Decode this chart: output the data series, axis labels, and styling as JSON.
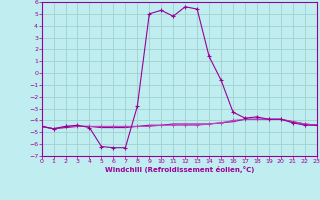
{
  "xlabel": "Windchill (Refroidissement éolien,°C)",
  "xlim": [
    0,
    23
  ],
  "ylim": [
    -7,
    6
  ],
  "xticks": [
    0,
    1,
    2,
    3,
    4,
    5,
    6,
    7,
    8,
    9,
    10,
    11,
    12,
    13,
    14,
    15,
    16,
    17,
    18,
    19,
    20,
    21,
    22,
    23
  ],
  "yticks": [
    -7,
    -6,
    -5,
    -4,
    -3,
    -2,
    -1,
    0,
    1,
    2,
    3,
    4,
    5,
    6
  ],
  "bg_color": "#c0eef0",
  "grid_color": "#a0d0d0",
  "line_color1": "#990099",
  "line_color2": "#bb44bb",
  "line_color3": "#cc55cc",
  "series1_x": [
    0,
    1,
    2,
    3,
    4,
    5,
    6,
    7,
    8,
    9,
    10,
    11,
    12,
    13,
    14,
    15,
    16,
    17,
    18,
    19,
    20,
    21,
    22,
    23
  ],
  "series1_y": [
    -4.5,
    -4.7,
    -4.5,
    -4.4,
    -4.6,
    -6.2,
    -6.3,
    -6.3,
    -2.8,
    5.0,
    5.3,
    4.8,
    5.6,
    5.4,
    1.4,
    -0.6,
    -3.3,
    -3.8,
    -3.7,
    -3.9,
    -3.9,
    -4.2,
    -4.4,
    -4.4
  ],
  "series2_x": [
    0,
    1,
    2,
    3,
    4,
    5,
    6,
    7,
    8,
    9,
    10,
    11,
    12,
    13,
    14,
    15,
    16,
    17,
    18,
    19,
    20,
    21,
    22,
    23
  ],
  "series2_y": [
    -4.5,
    -4.7,
    -4.5,
    -4.5,
    -4.5,
    -4.5,
    -4.5,
    -4.5,
    -4.5,
    -4.5,
    -4.4,
    -4.4,
    -4.4,
    -4.4,
    -4.3,
    -4.2,
    -4.0,
    -3.9,
    -3.9,
    -3.9,
    -3.9,
    -4.1,
    -4.3,
    -4.4
  ],
  "series3_x": [
    0,
    1,
    2,
    3,
    4,
    5,
    6,
    7,
    8,
    9,
    10,
    11,
    12,
    13,
    14,
    15,
    16,
    17,
    18,
    19,
    20,
    21,
    22,
    23
  ],
  "series3_y": [
    -4.5,
    -4.7,
    -4.6,
    -4.5,
    -4.5,
    -4.6,
    -4.6,
    -4.6,
    -4.5,
    -4.4,
    -4.4,
    -4.3,
    -4.3,
    -4.3,
    -4.3,
    -4.2,
    -4.1,
    -3.9,
    -3.9,
    -3.9,
    -3.9,
    -4.1,
    -4.3,
    -4.4
  ]
}
